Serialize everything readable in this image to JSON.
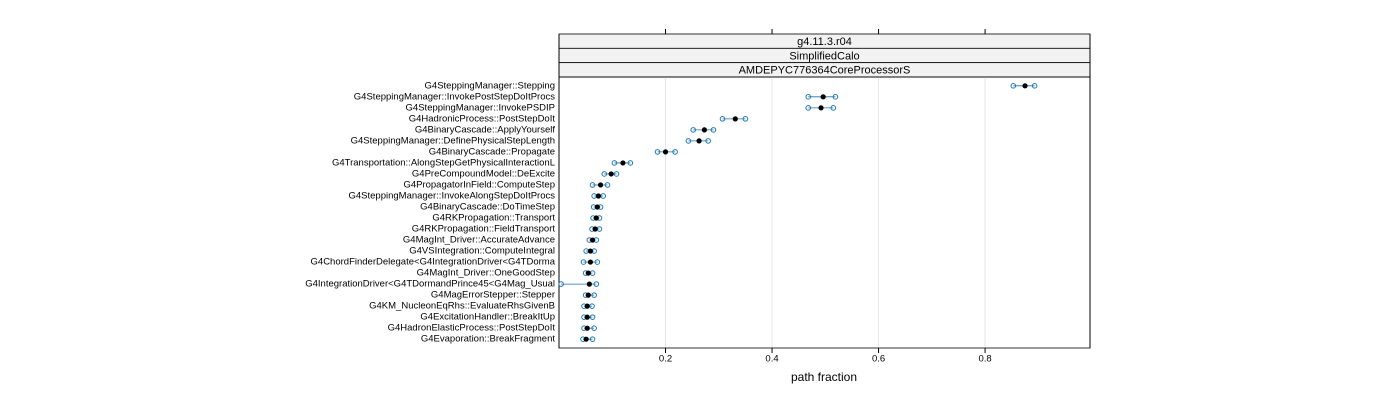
{
  "chart_data": {
    "type": "dotplot",
    "strips": [
      "g4.11.3.r04",
      "SimplifiedCalo",
      "AMDEPYC776364CoreProcessorS"
    ],
    "xlabel": "path fraction",
    "categories": [
      "G4SteppingManager::Stepping",
      "G4SteppingManager::InvokePostStepDoItProcs",
      "G4SteppingManager::InvokePSDIP",
      "G4HadronicProcess::PostStepDoIt",
      "G4BinaryCascade::ApplyYourself",
      "G4SteppingManager::DefinePhysicalStepLength",
      "G4BinaryCascade::Propagate",
      "G4Transportation::AlongStepGetPhysicalInteractionL",
      "G4PreCompoundModel::DeExcite",
      "G4PropagatorInField::ComputeStep",
      "G4SteppingManager::InvokeAlongStepDoItProcs",
      "G4BinaryCascade::DoTimeStep",
      "G4RKPropagation::Transport",
      "G4RKPropagation::FieldTransport",
      "G4MagInt_Driver::AccurateAdvance",
      "G4VSIntegration::ComputeIntegral",
      "G4ChordFinderDelegate<G4IntegrationDriver<G4TDorma",
      "G4MagInt_Driver::OneGoodStep",
      "G4IntegrationDriver<G4TDormandPrince45<G4Mag_Usual",
      "G4MagErrorStepper::Stepper",
      "G4KM_NucleonEqRhs::EvaluateRhsGivenB",
      "G4ExcitationHandler::BreakItUp",
      "G4HadronElasticProcess::PostStepDoIt",
      "G4Evaporation::BreakFragment"
    ],
    "values": [
      0.875,
      0.496,
      0.492,
      0.331,
      0.273,
      0.263,
      0.2,
      0.12,
      0.098,
      0.078,
      0.074,
      0.072,
      0.07,
      0.068,
      0.063,
      0.059,
      0.059,
      0.055,
      0.057,
      0.055,
      0.053,
      0.053,
      0.053,
      0.051
    ],
    "lower": [
      0.853,
      0.468,
      0.468,
      0.307,
      0.252,
      0.243,
      0.185,
      0.104,
      0.085,
      0.063,
      0.066,
      0.065,
      0.064,
      0.062,
      0.057,
      0.051,
      0.046,
      0.05,
      0.004,
      0.05,
      0.047,
      0.047,
      0.047,
      0.045
    ],
    "upper": [
      0.893,
      0.519,
      0.515,
      0.35,
      0.29,
      0.28,
      0.218,
      0.134,
      0.108,
      0.091,
      0.083,
      0.078,
      0.076,
      0.076,
      0.07,
      0.066,
      0.072,
      0.063,
      0.07,
      0.066,
      0.062,
      0.063,
      0.066,
      0.063
    ],
    "median_color": "#000000",
    "sample_color": "#0080ff",
    "xlim": [
      0,
      0.997
    ],
    "xticks": [
      0.2,
      0.4,
      0.6,
      0.8
    ],
    "grid": true
  }
}
